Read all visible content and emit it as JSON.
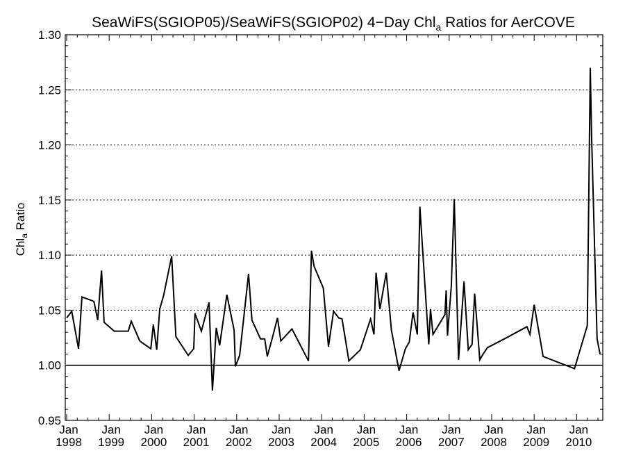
{
  "chart_data": {
    "type": "line",
    "title": {
      "prefix": "SeaWiFS(SGIOP05)/SeaWiFS(SGIOP02) 4−Day Chl",
      "subscript": "a",
      "suffix": " Ratios for AerCOVE"
    },
    "ylabel": {
      "main": "Chl",
      "subscript": "a",
      "suffix": " Ratio"
    },
    "xlabel": "",
    "ylim": [
      0.95,
      1.3
    ],
    "xlim": [
      1998.0,
      2010.58
    ],
    "grid": true,
    "reference_line": 1.0,
    "y_ticks": [
      {
        "value": 0.95,
        "label": "0.95"
      },
      {
        "value": 1.0,
        "label": "1.00"
      },
      {
        "value": 1.05,
        "label": "1.05"
      },
      {
        "value": 1.1,
        "label": "1.10"
      },
      {
        "value": 1.15,
        "label": "1.15"
      },
      {
        "value": 1.2,
        "label": "1.20"
      },
      {
        "value": 1.25,
        "label": "1.25"
      },
      {
        "value": 1.3,
        "label": "1.30"
      }
    ],
    "x_ticks": [
      {
        "value": 1998,
        "month": "Jan",
        "year": "1998"
      },
      {
        "value": 1999,
        "month": "Jan",
        "year": "1999"
      },
      {
        "value": 2000,
        "month": "Jan",
        "year": "2000"
      },
      {
        "value": 2001,
        "month": "Jan",
        "year": "2001"
      },
      {
        "value": 2002,
        "month": "Jan",
        "year": "2002"
      },
      {
        "value": 2003,
        "month": "Jan",
        "year": "2003"
      },
      {
        "value": 2004,
        "month": "Jan",
        "year": "2004"
      },
      {
        "value": 2005,
        "month": "Jan",
        "year": "2005"
      },
      {
        "value": 2006,
        "month": "Jan",
        "year": "2006"
      },
      {
        "value": 2007,
        "month": "Jan",
        "year": "2007"
      },
      {
        "value": 2008,
        "month": "Jan",
        "year": "2008"
      },
      {
        "value": 2009,
        "month": "Jan",
        "year": "2009"
      },
      {
        "value": 2010,
        "month": "Jan",
        "year": "2010"
      }
    ],
    "series": [
      {
        "x": [
          1998.0,
          1998.12,
          1998.28,
          1998.36,
          1998.64,
          1998.73,
          1998.82,
          1998.88,
          1999.12,
          1999.45,
          1999.52,
          1999.72,
          1999.98,
          2000.04,
          2000.12,
          2000.19,
          2000.28,
          2000.47,
          2000.57,
          2000.86,
          2000.99,
          2001.02,
          2001.17,
          2001.35,
          2001.43,
          2001.47,
          2001.52,
          2001.6,
          2001.77,
          2001.94,
          2001.97,
          2002.07,
          2002.28,
          2002.36,
          2002.56,
          2002.66,
          2002.72,
          2002.84,
          2002.96,
          2003.04,
          2003.3,
          2003.69,
          2003.76,
          2003.82,
          2004.04,
          2004.16,
          2004.28,
          2004.4,
          2004.48,
          2004.64,
          2004.91,
          2005.15,
          2005.23,
          2005.28,
          2005.37,
          2005.52,
          2005.64,
          2005.82,
          2005.97,
          2006.06,
          2006.15,
          2006.25,
          2006.31,
          2006.52,
          2006.56,
          2006.62,
          2006.9,
          2006.93,
          2006.96,
          2007.05,
          2007.12,
          2007.22,
          2007.35,
          2007.45,
          2007.54,
          2007.6,
          2007.72,
          2007.78,
          2007.9,
          2008.3,
          2008.83,
          2008.9,
          2009.0,
          2009.21,
          2009.95,
          2010.25,
          2010.32,
          2010.35,
          2010.48,
          2010.55
        ],
        "values": [
          1.043,
          1.049,
          1.015,
          1.062,
          1.058,
          1.041,
          1.086,
          1.039,
          1.031,
          1.031,
          1.04,
          1.022,
          1.015,
          1.037,
          1.014,
          1.051,
          1.063,
          1.099,
          1.026,
          1.009,
          1.015,
          1.047,
          1.031,
          1.057,
          0.977,
          1.002,
          1.034,
          1.018,
          1.064,
          1.032,
          0.999,
          1.009,
          1.083,
          1.041,
          1.024,
          1.024,
          1.008,
          1.025,
          1.043,
          1.022,
          1.033,
          1.004,
          1.104,
          1.09,
          1.07,
          1.017,
          1.049,
          1.043,
          1.042,
          1.004,
          1.014,
          1.042,
          1.028,
          1.084,
          1.051,
          1.084,
          1.032,
          0.995,
          1.015,
          1.021,
          1.048,
          1.028,
          1.144,
          1.019,
          1.051,
          1.028,
          1.046,
          1.068,
          1.027,
          1.072,
          1.151,
          1.005,
          1.076,
          1.014,
          1.019,
          1.065,
          1.005,
          1.009,
          1.016,
          1.024,
          1.035,
          1.028,
          1.055,
          1.008,
          0.997,
          1.036,
          1.27,
          1.21,
          1.024,
          1.01
        ]
      }
    ]
  }
}
